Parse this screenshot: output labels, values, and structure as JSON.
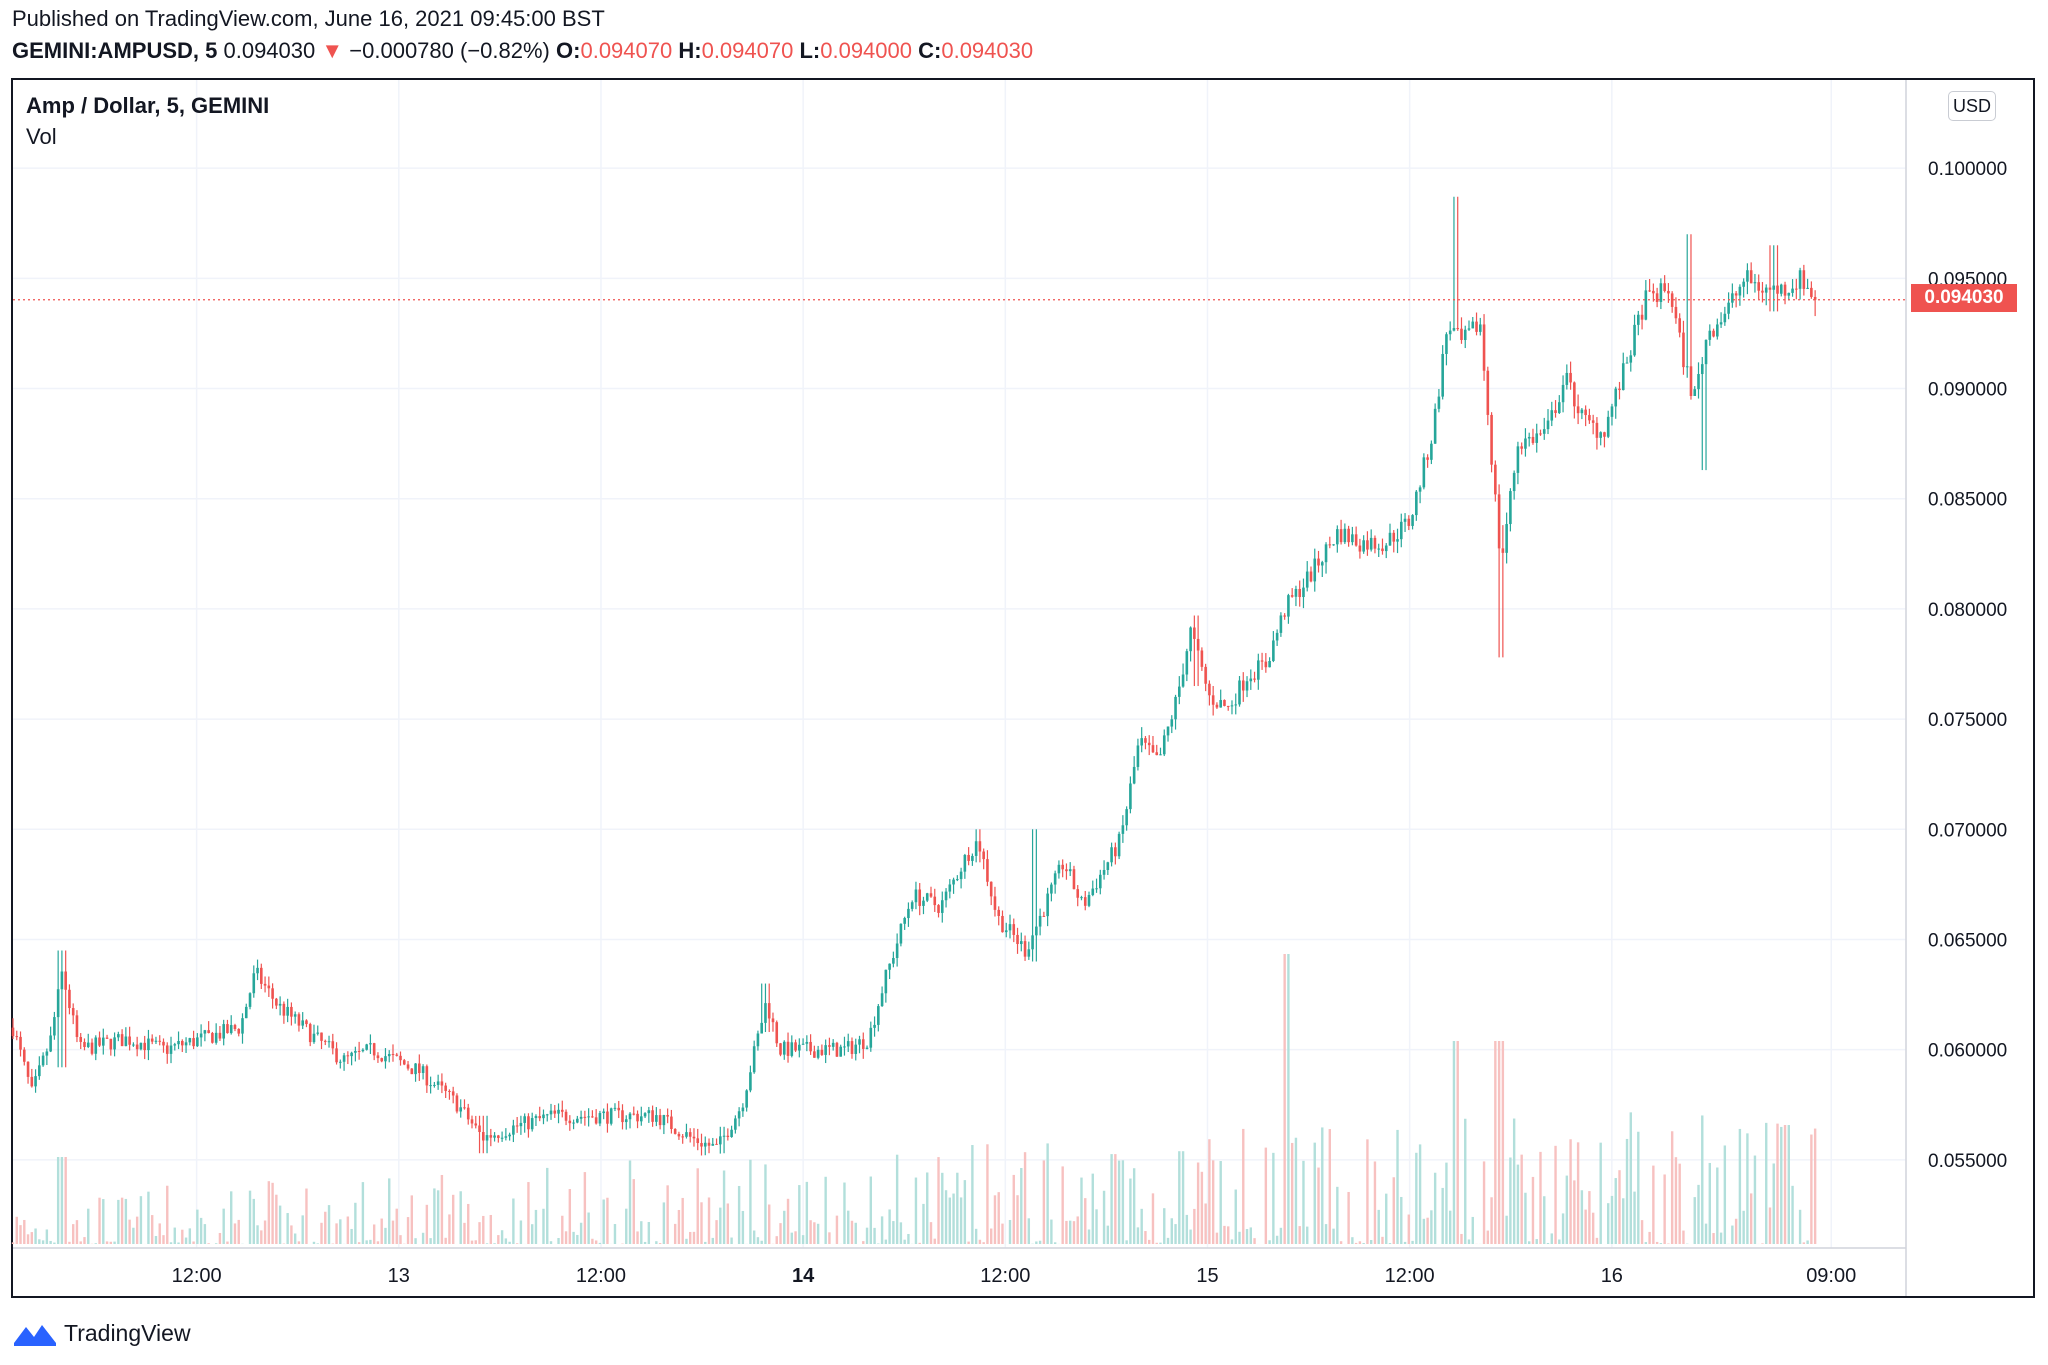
{
  "header": {
    "published": "Published on TradingView.com, June 16, 2021 09:45:00 BST",
    "symbol": "GEMINI:AMPUSD, 5",
    "last": "0.094030",
    "change_arrow": "▼",
    "change": "−0.000780 (−0.82%)",
    "o_label": "O:",
    "o_value": "0.094070",
    "h_label": "H:",
    "h_value": "0.094070",
    "l_label": "L:",
    "l_value": "0.094000",
    "c_label": "C:",
    "c_value": "0.094030"
  },
  "legend": {
    "title": "Amp / Dollar, 5, GEMINI",
    "volume": "Vol"
  },
  "currency_button": "USD",
  "current_price_label": "0.094030",
  "brand": {
    "name": "TradingView",
    "icon": "tradingview-logo-icon"
  },
  "colors": {
    "up": "#26a69a",
    "down": "#ef5350",
    "vol_up": "#b2dfdb",
    "vol_down": "#f7c1c0",
    "grid": "#f0f3fa"
  },
  "chart_data": {
    "type": "candlestick",
    "symbol": "GEMINI:AMPUSD",
    "interval": "5",
    "y_ticks": [
      "0.055000",
      "0.060000",
      "0.065000",
      "0.070000",
      "0.075000",
      "0.080000",
      "0.085000",
      "0.090000",
      "0.095000",
      "0.100000"
    ],
    "ylim": [
      0.051,
      0.104
    ],
    "x_ticks": [
      {
        "label": "12:00",
        "bold": false
      },
      {
        "label": "13",
        "bold": false
      },
      {
        "label": "12:00",
        "bold": false
      },
      {
        "label": "14",
        "bold": true
      },
      {
        "label": "12:00",
        "bold": false
      },
      {
        "label": "15",
        "bold": false
      },
      {
        "label": "12:00",
        "bold": false
      },
      {
        "label": "16",
        "bold": false
      },
      {
        "label": "09:00",
        "bold": false
      }
    ],
    "last_price": 0.09403,
    "price_path": [
      [
        0.0,
        0.061
      ],
      [
        0.01,
        0.058
      ],
      [
        0.02,
        0.0605
      ],
      [
        0.026,
        0.0635
      ],
      [
        0.035,
        0.06
      ],
      [
        0.06,
        0.0605
      ],
      [
        0.08,
        0.06
      ],
      [
        0.1,
        0.0605
      ],
      [
        0.12,
        0.061
      ],
      [
        0.128,
        0.0635
      ],
      [
        0.14,
        0.062
      ],
      [
        0.16,
        0.0605
      ],
      [
        0.175,
        0.0595
      ],
      [
        0.19,
        0.06
      ],
      [
        0.215,
        0.059
      ],
      [
        0.235,
        0.0575
      ],
      [
        0.248,
        0.056
      ],
      [
        0.265,
        0.0565
      ],
      [
        0.285,
        0.057
      ],
      [
        0.31,
        0.057
      ],
      [
        0.34,
        0.057
      ],
      [
        0.358,
        0.056
      ],
      [
        0.372,
        0.0555
      ],
      [
        0.385,
        0.0575
      ],
      [
        0.398,
        0.0622
      ],
      [
        0.405,
        0.06
      ],
      [
        0.42,
        0.06
      ],
      [
        0.44,
        0.06
      ],
      [
        0.452,
        0.0605
      ],
      [
        0.46,
        0.063
      ],
      [
        0.475,
        0.067
      ],
      [
        0.49,
        0.0665
      ],
      [
        0.505,
        0.069
      ],
      [
        0.51,
        0.0695
      ],
      [
        0.52,
        0.066
      ],
      [
        0.535,
        0.0645
      ],
      [
        0.545,
        0.0665
      ],
      [
        0.555,
        0.0685
      ],
      [
        0.565,
        0.0665
      ],
      [
        0.575,
        0.068
      ],
      [
        0.585,
        0.0695
      ],
      [
        0.595,
        0.074
      ],
      [
        0.605,
        0.073
      ],
      [
        0.615,
        0.076
      ],
      [
        0.622,
        0.079
      ],
      [
        0.632,
        0.076
      ],
      [
        0.642,
        0.0755
      ],
      [
        0.652,
        0.077
      ],
      [
        0.662,
        0.0775
      ],
      [
        0.672,
        0.08
      ],
      [
        0.685,
        0.0815
      ],
      [
        0.7,
        0.0835
      ],
      [
        0.712,
        0.083
      ],
      [
        0.725,
        0.083
      ],
      [
        0.738,
        0.084
      ],
      [
        0.75,
        0.088
      ],
      [
        0.758,
        0.093
      ],
      [
        0.765,
        0.092
      ],
      [
        0.775,
        0.093
      ],
      [
        0.78,
        0.088
      ],
      [
        0.786,
        0.082
      ],
      [
        0.795,
        0.0875
      ],
      [
        0.81,
        0.088
      ],
      [
        0.82,
        0.0905
      ],
      [
        0.83,
        0.0885
      ],
      [
        0.84,
        0.088
      ],
      [
        0.85,
        0.0905
      ],
      [
        0.862,
        0.094
      ],
      [
        0.875,
        0.0945
      ],
      [
        0.882,
        0.0915
      ],
      [
        0.888,
        0.0895
      ],
      [
        0.895,
        0.0925
      ],
      [
        0.905,
        0.0935
      ],
      [
        0.915,
        0.095
      ],
      [
        0.925,
        0.0945
      ],
      [
        0.935,
        0.0945
      ],
      [
        0.945,
        0.095
      ],
      [
        0.952,
        0.094
      ]
    ],
    "extremes": [
      [
        0.026,
        0.0645,
        0.0592
      ],
      [
        0.398,
        0.063,
        0.0608
      ],
      [
        0.51,
        0.07,
        0.0685
      ],
      [
        0.54,
        0.07,
        0.064
      ],
      [
        0.625,
        0.0797,
        0.0765
      ],
      [
        0.762,
        0.0987,
        0.0935
      ],
      [
        0.786,
        0.0838,
        0.0778
      ],
      [
        0.885,
        0.097,
        0.0935
      ],
      [
        0.893,
        0.0905,
        0.0863
      ],
      [
        0.93,
        0.0965,
        0.0935
      ],
      [
        0.248,
        0.057,
        0.0553
      ],
      [
        0.375,
        0.0565,
        0.0553
      ]
    ],
    "volume_spikes": [
      [
        0.026,
        0.3
      ],
      [
        0.672,
        1.0
      ],
      [
        0.762,
        0.7
      ],
      [
        0.785,
        0.7
      ],
      [
        0.617,
        0.32
      ],
      [
        0.582,
        0.31
      ]
    ]
  }
}
